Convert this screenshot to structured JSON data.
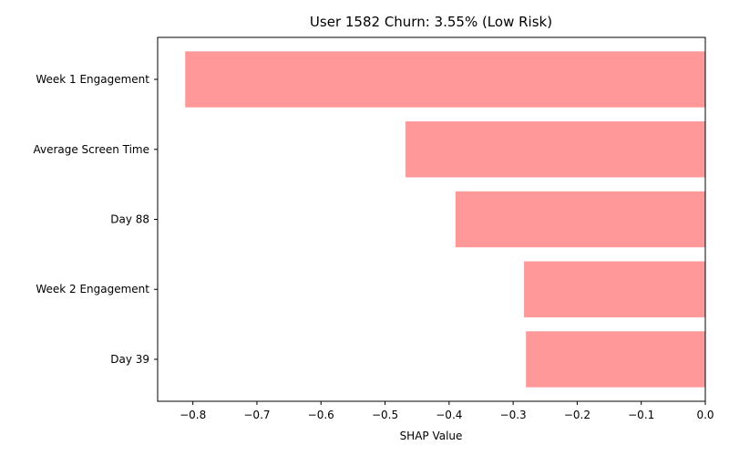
{
  "chart_data": {
    "type": "bar",
    "orientation": "horizontal",
    "title": "User 1582 Churn: 3.55% (Low Risk)",
    "xlabel": "SHAP Value",
    "ylabel": "",
    "categories": [
      "Week 1 Engagement",
      "Average Screen Time",
      "Day 88",
      "Week 2 Engagement",
      "Day 39"
    ],
    "values": [
      -0.812,
      -0.468,
      -0.39,
      -0.283,
      -0.28
    ],
    "xlim": [
      -0.855,
      0.0
    ],
    "xticks": [
      -0.8,
      -0.7,
      -0.6,
      -0.5,
      -0.4,
      -0.3,
      -0.2,
      -0.1,
      0.0
    ],
    "xtick_labels": [
      "−0.8",
      "−0.7",
      "−0.6",
      "−0.5",
      "−0.4",
      "−0.3",
      "−0.2",
      "−0.1",
      "0.0"
    ],
    "bar_color": "#ff9999",
    "grid": false,
    "legend": "none"
  }
}
